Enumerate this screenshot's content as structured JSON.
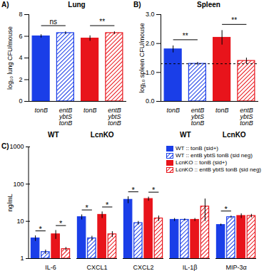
{
  "chart_data": [
    {
      "type": "bar",
      "panel": "A)",
      "title": "Lung",
      "ylabel": "log₁₀ lung CFU/mouse",
      "categories": [
        "tonB",
        "entB ybtS tonB",
        "tonB",
        "entB ybtS tonB"
      ],
      "groups": [
        "WT",
        "WT",
        "LcnKO",
        "LcnKO"
      ],
      "values": [
        6.0,
        6.3,
        5.8,
        6.3
      ],
      "errors": [
        0.15,
        0.12,
        0.25,
        0.12
      ],
      "colors": [
        "#1a3ee8",
        "#1a3ee8",
        "#e8141b",
        "#e8141b"
      ],
      "ylim": [
        0,
        8
      ],
      "yticks": [
        0,
        2,
        4,
        6,
        8
      ],
      "annotations": [
        {
          "text": "ns",
          "from": 0,
          "to": 1
        },
        {
          "text": "**",
          "from": 2,
          "to": 3
        }
      ]
    },
    {
      "type": "bar",
      "panel": "B)",
      "title": "Spleen",
      "ylabel": "log₁₀ spleen CFU/mouse",
      "categories": [
        "tonB",
        "entB ybtS tonB",
        "tonB",
        "entB ybtS tonB"
      ],
      "groups": [
        "WT",
        "WT",
        "LcnKO",
        "LcnKO"
      ],
      "values": [
        1.8,
        1.3,
        2.2,
        1.4
      ],
      "errors": [
        0.12,
        0.05,
        0.25,
        0.1
      ],
      "colors": [
        "#1a3ee8",
        "#1a3ee8",
        "#e8141b",
        "#e8141b"
      ],
      "ylim": [
        0,
        3
      ],
      "yticks": [
        0,
        1,
        2,
        3
      ],
      "threshold": 1.3,
      "line_style": "dashed",
      "annotations": [
        {
          "text": "**",
          "from": 0,
          "to": 1
        },
        {
          "text": "**",
          "from": 2,
          "to": 3
        }
      ]
    },
    {
      "type": "bar",
      "panel": "C)",
      "ylabel": "ng/mL",
      "categories": [
        "IL-6",
        "CXCL1",
        "CXCL2",
        "IL-1β",
        "MIP-3α"
      ],
      "series": [
        {
          "name": "WT :: tonB (sid+)",
          "color": "#1a3ee8",
          "values": [
            3.5,
            13,
            38,
            11,
            8
          ],
          "errors": [
            0.6,
            2,
            8,
            1,
            0.5
          ]
        },
        {
          "name": "WT :: entB ybtS tonB (sid neg)",
          "color": "#1a3ee8",
          "values": [
            1.5,
            3.5,
            9,
            11,
            13
          ],
          "errors": [
            0.2,
            0.5,
            1,
            0.8,
            1
          ]
        },
        {
          "name": "LcnKO :: tonB (sid+)",
          "color": "#e8141b",
          "values": [
            4.5,
            15,
            40,
            11,
            14
          ],
          "errors": [
            1.2,
            3,
            5,
            1,
            2
          ]
        },
        {
          "name": "LcnKO :: entB ybtS tonB (sid neg)",
          "color": "#e8141b",
          "values": [
            1.8,
            4.5,
            12,
            25,
            14
          ],
          "errors": [
            0.2,
            0.8,
            2,
            15,
            1.5
          ]
        }
      ],
      "log": "y",
      "ylim": [
        1,
        1000
      ],
      "yticks": [
        1,
        10,
        100,
        1000
      ],
      "legend": "top-right",
      "annotations": [
        {
          "text": "*",
          "category": "IL-6",
          "from": 0,
          "to": 1
        },
        {
          "text": "*",
          "category": "IL-6",
          "from": 2,
          "to": 3
        },
        {
          "text": "*",
          "category": "CXCL1",
          "from": 0,
          "to": 1
        },
        {
          "text": "*",
          "category": "CXCL1",
          "from": 2,
          "to": 3
        },
        {
          "text": "*",
          "category": "CXCL2",
          "from": 0,
          "to": 1
        },
        {
          "text": "*",
          "category": "CXCL2",
          "from": 2,
          "to": 3
        },
        {
          "text": "*",
          "category": "MIP-3α",
          "from": 0,
          "to": 1
        }
      ]
    }
  ]
}
